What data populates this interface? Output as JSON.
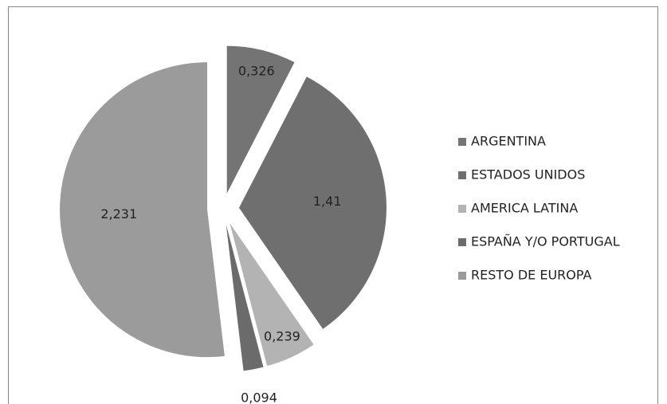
{
  "chart_data": {
    "type": "pie",
    "categories": [
      "ARGENTINA",
      "ESTADOS UNIDOS",
      "AMERICA LATINA",
      "ESPAÑA Y/O PORTUGAL",
      "RESTO DE EUROPA"
    ],
    "values": [
      0.326,
      1.41,
      0.239,
      0.094,
      2.231
    ],
    "value_labels": [
      "0,326",
      "1,41",
      "0,239",
      "0,094",
      "2,231"
    ],
    "colors": [
      "#747474",
      "#6f6f6f",
      "#b3b3b3",
      "#6b6b6b",
      "#9b9b9b"
    ],
    "exploded": true,
    "legend": "right"
  }
}
